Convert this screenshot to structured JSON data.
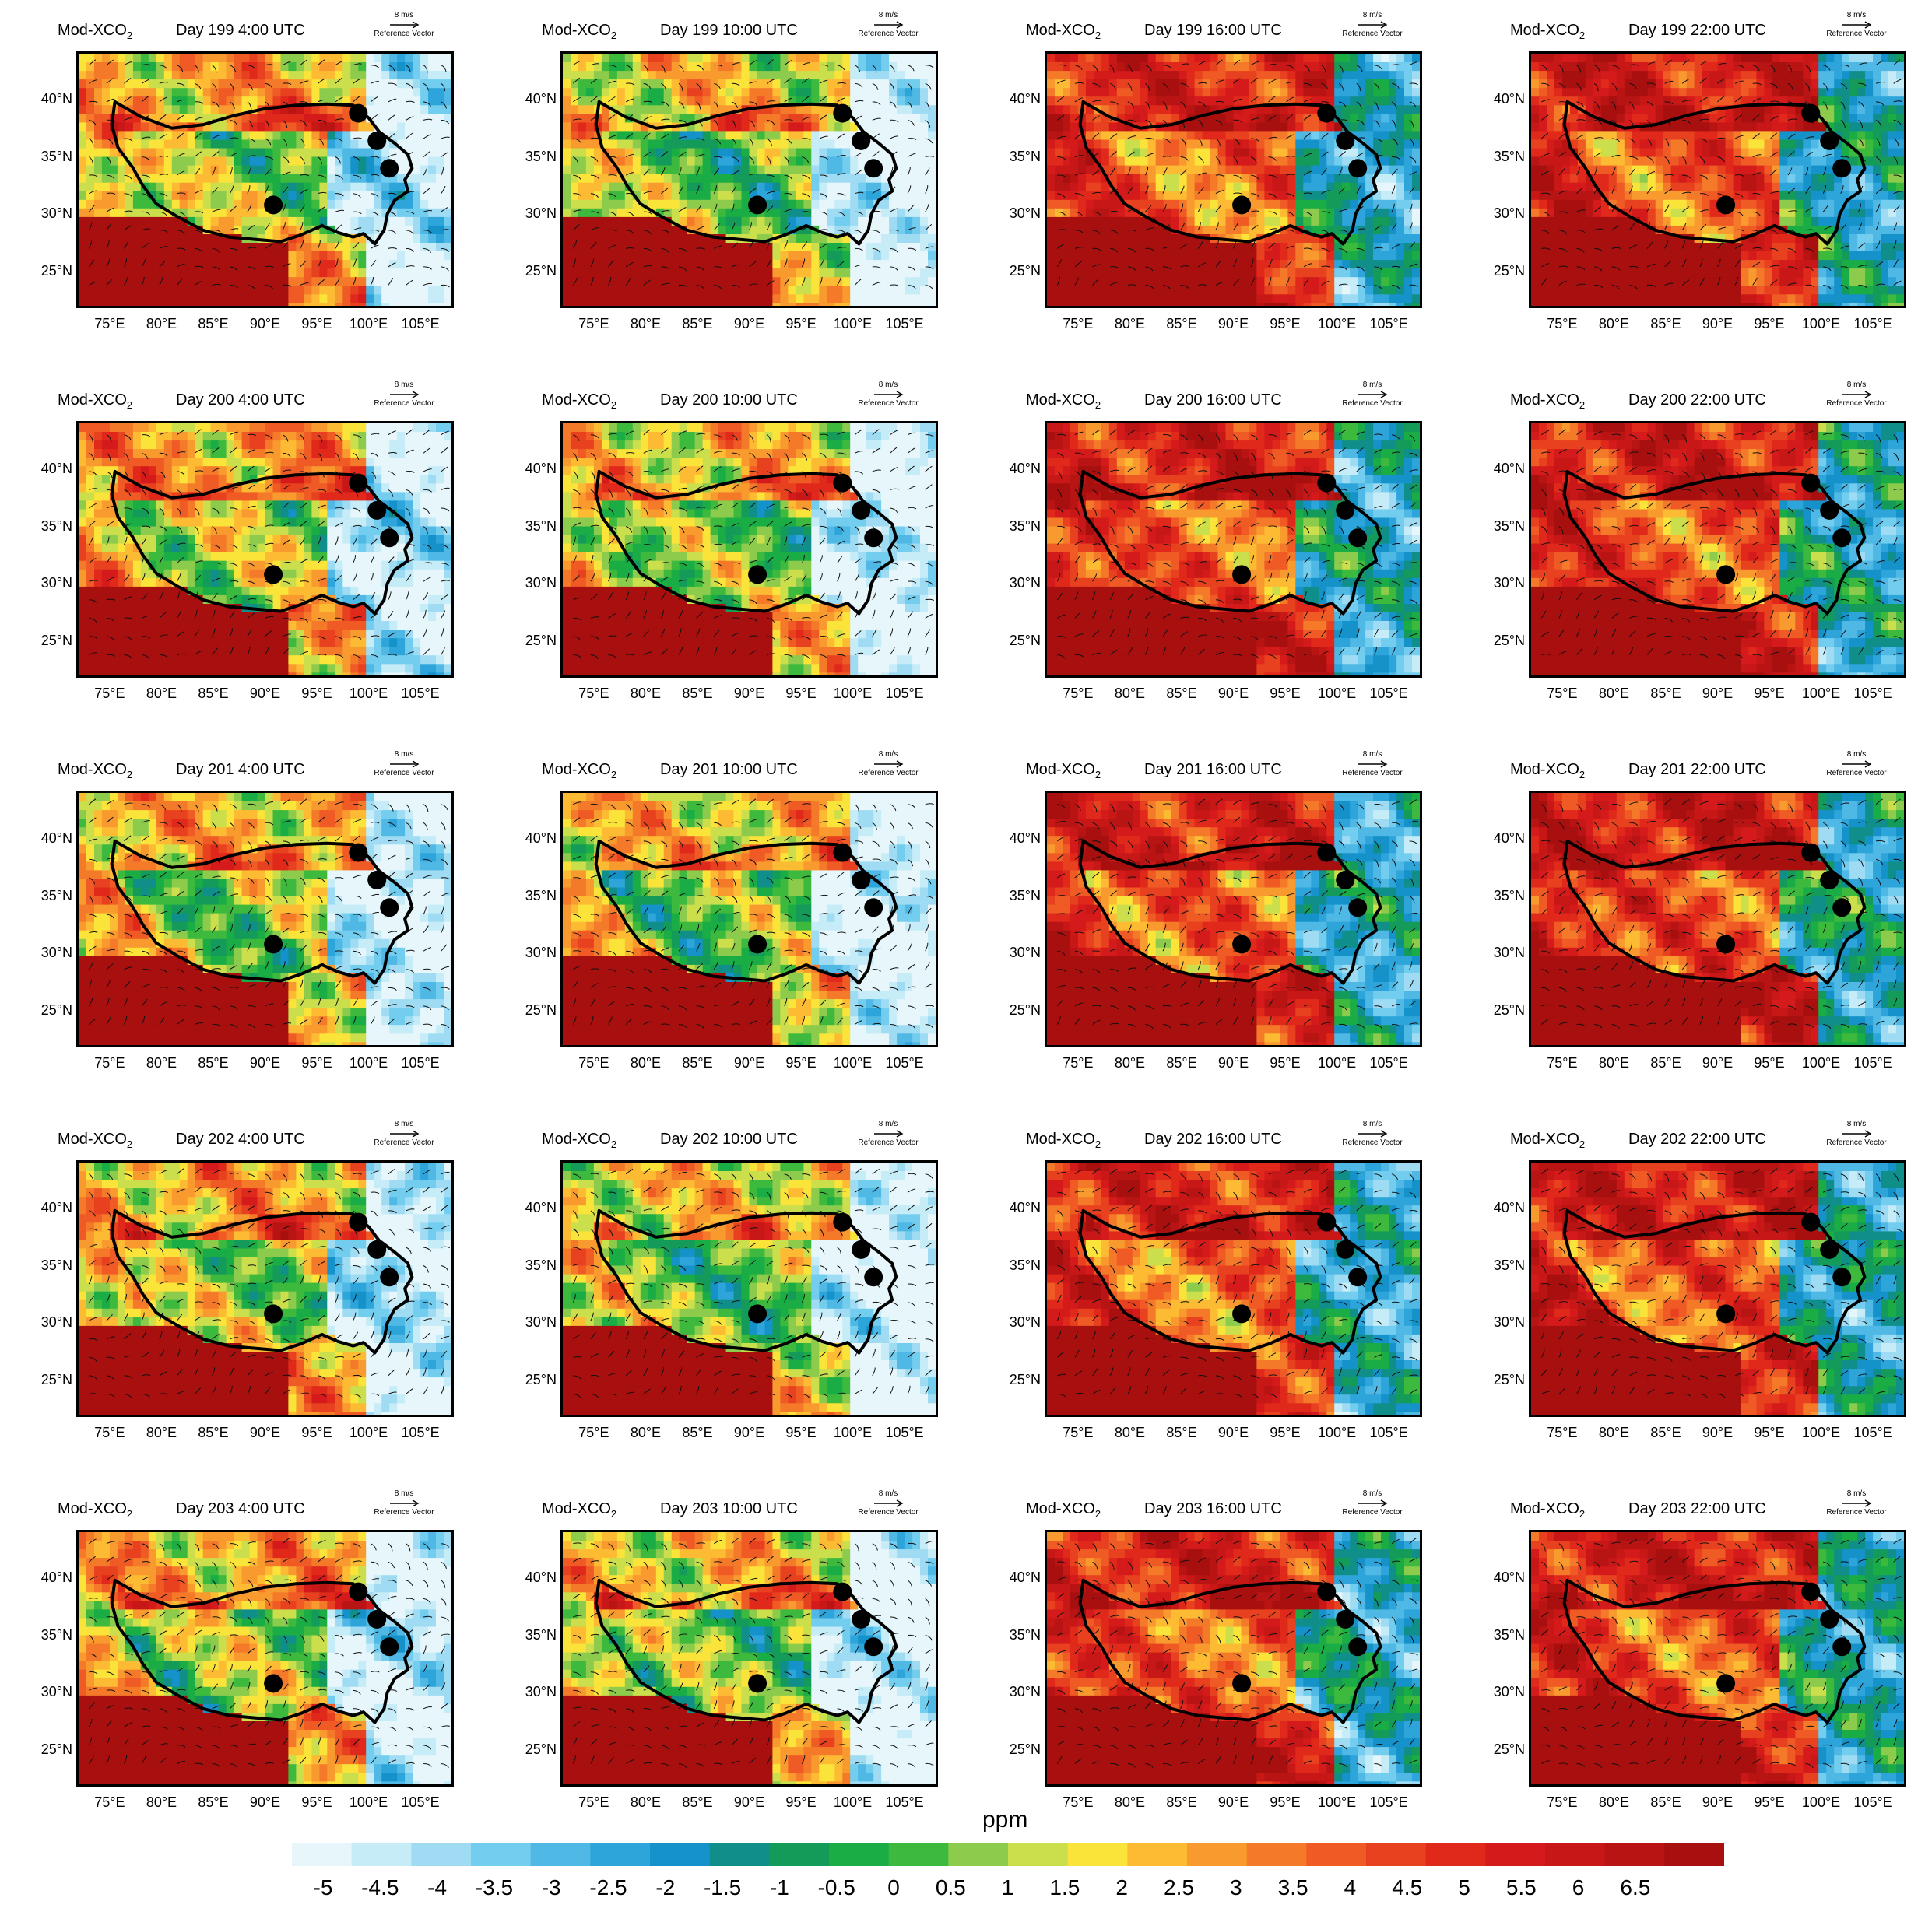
{
  "figure": {
    "variable_label": "Mod-XCO",
    "variable_subscript": "2",
    "reference_vector_speed": "8 m/s",
    "reference_vector_label": "Reference Vector",
    "y_tick_labels": [
      "40°N",
      "35°N",
      "30°N",
      "25°N"
    ],
    "x_tick_labels": [
      "75°E",
      "80°E",
      "85°E",
      "90°E",
      "95°E",
      "100°E",
      "105°E"
    ],
    "panels": [
      {
        "title": "Day 199 4:00 UTC",
        "mean_level": 2.2
      },
      {
        "title": "Day 199 10:00 UTC",
        "mean_level": 1.6
      },
      {
        "title": "Day 199 16:00 UTC",
        "mean_level": 4.6
      },
      {
        "title": "Day 199 22:00 UTC",
        "mean_level": 5.0
      },
      {
        "title": "Day 200 4:00 UTC",
        "mean_level": 2.4
      },
      {
        "title": "Day 200 10:00 UTC",
        "mean_level": 1.8
      },
      {
        "title": "Day 200 16:00 UTC",
        "mean_level": 4.8
      },
      {
        "title": "Day 200 22:00 UTC",
        "mean_level": 5.0
      },
      {
        "title": "Day 201 4:00 UTC",
        "mean_level": 2.0
      },
      {
        "title": "Day 201 10:00 UTC",
        "mean_level": 1.8
      },
      {
        "title": "Day 201 16:00 UTC",
        "mean_level": 4.8
      },
      {
        "title": "Day 201 22:00 UTC",
        "mean_level": 5.2
      },
      {
        "title": "Day 202 4:00 UTC",
        "mean_level": 2.2
      },
      {
        "title": "Day 202 10:00 UTC",
        "mean_level": 1.6
      },
      {
        "title": "Day 202 16:00 UTC",
        "mean_level": 4.6
      },
      {
        "title": "Day 202 22:00 UTC",
        "mean_level": 5.0
      },
      {
        "title": "Day 203 4:00 UTC",
        "mean_level": 2.2
      },
      {
        "title": "Day 203 10:00 UTC",
        "mean_level": 1.8
      },
      {
        "title": "Day 203 16:00 UTC",
        "mean_level": 4.8
      },
      {
        "title": "Day 203 22:00 UTC",
        "mean_level": 5.0
      }
    ],
    "site_markers": [
      {
        "lon": 99.0,
        "lat": 38.8
      },
      {
        "lon": 100.8,
        "lat": 36.4
      },
      {
        "lon": 102.0,
        "lat": 34.0
      },
      {
        "lon": 90.8,
        "lat": 30.8
      }
    ]
  },
  "colorbar": {
    "unit": "ppm",
    "labels": [
      "-5",
      "-4.5",
      "-4",
      "-3.5",
      "-3",
      "-2.5",
      "-2",
      "-1.5",
      "-1",
      "-0.5",
      "0",
      "0.5",
      "1",
      "1.5",
      "2",
      "2.5",
      "3",
      "3.5",
      "4",
      "4.5",
      "5",
      "5.5",
      "6",
      "6.5"
    ],
    "colors": [
      "#e6f6fb",
      "#c6ecf8",
      "#9fdcf3",
      "#72cdee",
      "#4fb8e4",
      "#2ea5da",
      "#1592c9",
      "#108f8a",
      "#149b5a",
      "#1aac45",
      "#3dba3d",
      "#8ccb4b",
      "#cbde4c",
      "#fbe43a",
      "#fdbb34",
      "#f99a2f",
      "#f47a2a",
      "#ef5a25",
      "#e8411f",
      "#e0291b",
      "#d41a1a",
      "#c81717",
      "#b91414",
      "#a80f0f"
    ]
  }
}
